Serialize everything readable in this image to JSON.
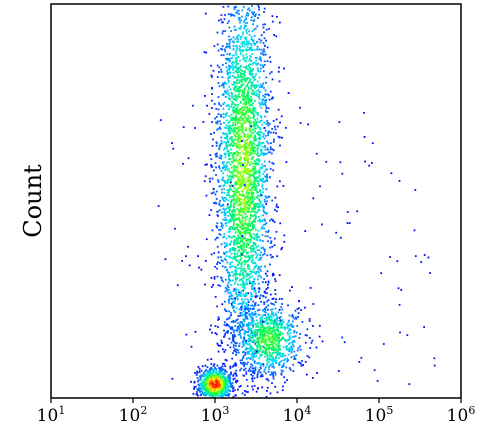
{
  "chart_data": {
    "type": "heatmap",
    "subtype": "density-dot-plot",
    "title": "",
    "xlabel": "",
    "ylabel": "Count",
    "x_scale": "log10",
    "xlim": [
      10,
      1000000
    ],
    "x_ticks": [
      {
        "base": "10",
        "exp": "1"
      },
      {
        "base": "10",
        "exp": "2"
      },
      {
        "base": "10",
        "exp": "3"
      },
      {
        "base": "10",
        "exp": "4"
      },
      {
        "base": "10",
        "exp": "5"
      },
      {
        "base": "10",
        "exp": "6"
      }
    ],
    "y_ticks": [],
    "grid": false,
    "colormap": [
      "#0000ff",
      "#00d8ff",
      "#00ff40",
      "#ffff00",
      "#ff0000"
    ],
    "populations": [
      {
        "x_center_log10": 3.35,
        "y_center_frac": 0.58,
        "x_spread_log10": 0.17,
        "y_spread_frac": 0.25,
        "peak_density": 0.65,
        "n_events": 3200
      },
      {
        "x_center_log10": 3.65,
        "y_center_frac": 0.15,
        "x_spread_log10": 0.22,
        "y_spread_frac": 0.05,
        "peak_density": 0.55,
        "n_events": 900
      },
      {
        "x_center_log10": 3.0,
        "y_center_frac": 0.035,
        "x_spread_log10": 0.1,
        "y_spread_frac": 0.02,
        "peak_density": 1.0,
        "n_events": 800
      }
    ],
    "outlier_events": 110
  }
}
